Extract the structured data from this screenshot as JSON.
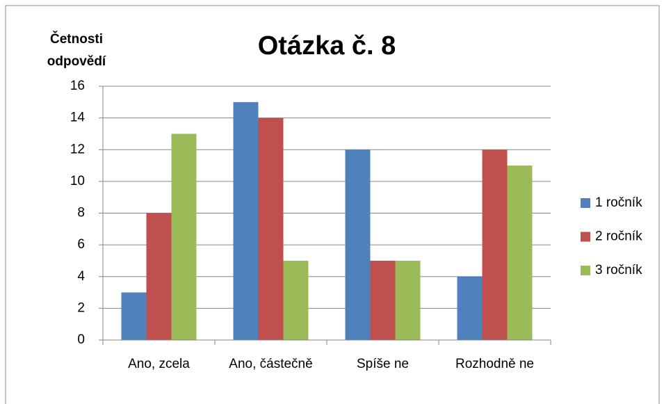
{
  "chart_data": {
    "type": "bar",
    "title": "Otázka č. 8",
    "y_label": [
      "Četnosti",
      "odpovědí"
    ],
    "categories": [
      "Ano, zcela",
      "Ano, částečně",
      "Spíše ne",
      "Rozhodně ne"
    ],
    "series": [
      {
        "name": "1 ročník",
        "color": "#4f81bd",
        "values": [
          3,
          15,
          12,
          4
        ]
      },
      {
        "name": "2 ročník",
        "color": "#c0504d",
        "values": [
          8,
          14,
          5,
          12
        ]
      },
      {
        "name": "3 ročník",
        "color": "#9bbb59",
        "values": [
          13,
          5,
          5,
          11
        ]
      }
    ],
    "ylim": [
      0,
      16
    ],
    "yticks": [
      0,
      2,
      4,
      6,
      8,
      10,
      12,
      14,
      16
    ],
    "grid": true,
    "legend": "right"
  }
}
